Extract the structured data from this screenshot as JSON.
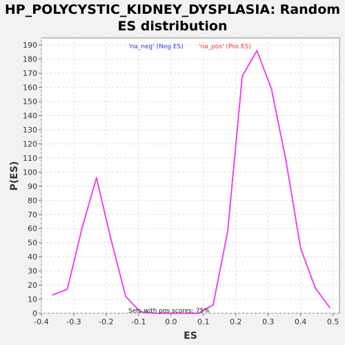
{
  "chart_data": {
    "type": "line",
    "title_line1": "HP_POLYCYSTIC_KIDNEY_DYSPLASIA: Random",
    "title_line2": "ES distribution",
    "xlabel": "ES",
    "ylabel": "P(ES)",
    "xlim": [
      -0.4,
      0.52
    ],
    "ylim": [
      0,
      195
    ],
    "x_ticks": [
      -0.4,
      -0.3,
      -0.2,
      -0.1,
      0.0,
      0.1,
      0.2,
      0.3,
      0.4,
      0.5
    ],
    "x_tick_labels": [
      "-0.4",
      "-0.3",
      "-0.2",
      "-0.1",
      "0.0",
      "0.1",
      "0.2",
      "0.3",
      "0.4",
      "0.5"
    ],
    "y_ticks": [
      0,
      10,
      20,
      30,
      40,
      50,
      60,
      70,
      80,
      90,
      100,
      110,
      120,
      130,
      140,
      150,
      160,
      170,
      180,
      190
    ],
    "grid": true,
    "legend_placement": "top-center",
    "legend": [
      {
        "label": "'na_neg' (Neg ES)",
        "color": "#3333ff"
      },
      {
        "label": "'na_pos' (Pos ES)",
        "color": "#ff3333"
      }
    ],
    "annotation": "Sets with pos scores: 75%",
    "series": [
      {
        "color": "#ee44ee",
        "x": [
          -0.365,
          -0.32,
          -0.275,
          -0.23,
          -0.185,
          -0.14,
          -0.095,
          -0.05,
          0.0,
          0.04,
          0.085,
          0.13,
          0.175,
          0.22,
          0.265,
          0.31,
          0.355,
          0.4,
          0.445,
          0.49
        ],
        "y": [
          13,
          17,
          60,
          96,
          52,
          12,
          1,
          0,
          0,
          0,
          0,
          6,
          58,
          168,
          186,
          159,
          108,
          46,
          18,
          4
        ]
      }
    ]
  }
}
